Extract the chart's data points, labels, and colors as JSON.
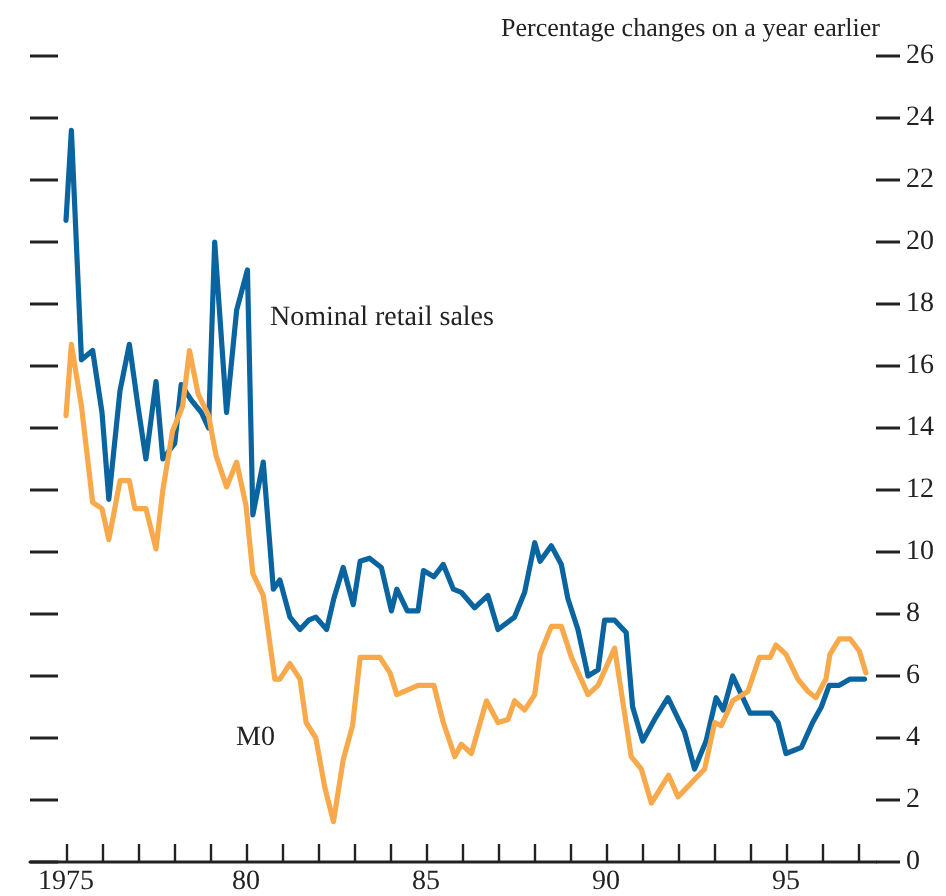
{
  "chart_data": {
    "type": "line",
    "title": "Percentage changes on a year earlier",
    "xlim": [
      1974,
      1997.5
    ],
    "xticks": [
      {
        "value": 1975,
        "label": "1975"
      },
      {
        "value": 1976,
        "label": null
      },
      {
        "value": 1977,
        "label": null
      },
      {
        "value": 1978,
        "label": null
      },
      {
        "value": 1979,
        "label": null
      },
      {
        "value": 1980,
        "label": "80"
      },
      {
        "value": 1981,
        "label": null
      },
      {
        "value": 1982,
        "label": null
      },
      {
        "value": 1983,
        "label": null
      },
      {
        "value": 1984,
        "label": null
      },
      {
        "value": 1985,
        "label": "85"
      },
      {
        "value": 1986,
        "label": null
      },
      {
        "value": 1987,
        "label": null
      },
      {
        "value": 1988,
        "label": null
      },
      {
        "value": 1989,
        "label": null
      },
      {
        "value": 1990,
        "label": "90"
      },
      {
        "value": 1991,
        "label": null
      },
      {
        "value": 1992,
        "label": null
      },
      {
        "value": 1993,
        "label": null
      },
      {
        "value": 1994,
        "label": null
      },
      {
        "value": 1995,
        "label": "95"
      },
      {
        "value": 1996,
        "label": null
      },
      {
        "value": 1997,
        "label": null
      }
    ],
    "ylim": [
      0,
      26
    ],
    "yticks": [
      0,
      2,
      4,
      6,
      8,
      10,
      12,
      14,
      16,
      18,
      20,
      22,
      24,
      26
    ],
    "grid": false,
    "legend": false,
    "marker": "none",
    "line_style": "solid",
    "series": [
      {
        "name": "Nominal retail sales",
        "color": "#0a64a0",
        "x": [
          1975.0,
          1975.15,
          1975.43,
          1975.74,
          1976.0,
          1976.19,
          1976.5,
          1976.76,
          1977.0,
          1977.22,
          1977.5,
          1977.69,
          1978.02,
          1978.2,
          1978.48,
          1978.76,
          1978.96,
          1979.13,
          1979.46,
          1979.74,
          1980.04,
          1980.19,
          1980.48,
          1980.76,
          1980.94,
          1981.22,
          1981.5,
          1981.74,
          1981.94,
          1982.24,
          1982.44,
          1982.7,
          1982.98,
          1983.17,
          1983.43,
          1983.76,
          1984.04,
          1984.19,
          1984.48,
          1984.78,
          1984.93,
          1985.22,
          1985.48,
          1985.76,
          1985.98,
          1986.35,
          1986.72,
          1987.0,
          1987.46,
          1987.74,
          1988.02,
          1988.17,
          1988.48,
          1988.76,
          1988.94,
          1989.22,
          1989.5,
          1989.78,
          1989.96,
          1990.24,
          1990.56,
          1990.74,
          1991.02,
          1991.35,
          1991.72,
          1992.18,
          1992.46,
          1992.78,
          1993.06,
          1993.26,
          1993.52,
          1993.76,
          1994.0,
          1994.59,
          1994.78,
          1995.0,
          1995.43,
          1995.74,
          1995.98,
          1996.2,
          1996.48,
          1996.78,
          1997.18
        ],
        "values": [
          20.7,
          23.6,
          16.2,
          16.5,
          14.5,
          11.7,
          15.2,
          16.7,
          14.7,
          13.0,
          15.5,
          13.0,
          13.5,
          15.4,
          14.9,
          14.5,
          14.0,
          20.0,
          14.5,
          17.8,
          19.1,
          11.2,
          12.9,
          8.8,
          9.1,
          7.9,
          7.5,
          7.8,
          7.9,
          7.5,
          8.5,
          9.5,
          8.3,
          9.7,
          9.8,
          9.5,
          8.1,
          8.8,
          8.1,
          8.1,
          9.4,
          9.2,
          9.6,
          8.8,
          8.7,
          8.2,
          8.6,
          7.5,
          7.9,
          8.7,
          10.3,
          9.7,
          10.2,
          9.6,
          8.5,
          7.5,
          6.0,
          6.2,
          7.8,
          7.8,
          7.4,
          5.0,
          3.9,
          4.6,
          5.3,
          4.2,
          3.0,
          3.9,
          5.3,
          4.9,
          6.0,
          5.4,
          4.8,
          4.8,
          4.5,
          3.5,
          3.7,
          4.5,
          5.0,
          5.7,
          5.7,
          5.9,
          5.9
        ]
      },
      {
        "name": "M0",
        "color": "#f7a94b",
        "x": [
          1975.0,
          1975.15,
          1975.43,
          1975.74,
          1976.0,
          1976.19,
          1976.5,
          1976.76,
          1976.91,
          1977.22,
          1977.5,
          1977.69,
          1977.96,
          1978.24,
          1978.43,
          1978.67,
          1978.96,
          1979.17,
          1979.46,
          1979.74,
          1980.0,
          1980.19,
          1980.48,
          1980.8,
          1980.94,
          1981.22,
          1981.5,
          1981.67,
          1981.94,
          1982.19,
          1982.43,
          1982.7,
          1982.96,
          1983.17,
          1983.72,
          1984.0,
          1984.19,
          1984.78,
          1985.22,
          1985.48,
          1985.8,
          1985.98,
          1986.26,
          1986.68,
          1987.0,
          1987.28,
          1987.46,
          1987.74,
          1988.02,
          1988.17,
          1988.48,
          1988.76,
          1989.04,
          1989.5,
          1989.78,
          1990.24,
          1990.7,
          1990.98,
          1991.26,
          1991.74,
          1992.0,
          1992.74,
          1993.02,
          1993.2,
          1993.52,
          1993.94,
          1994.26,
          1994.56,
          1994.72,
          1995.0,
          1995.33,
          1995.61,
          1995.83,
          1996.11,
          1996.22,
          1996.48,
          1996.78,
          1997.04,
          1997.22
        ],
        "values": [
          14.4,
          16.7,
          14.7,
          11.6,
          11.4,
          10.4,
          12.3,
          12.3,
          11.4,
          11.4,
          10.1,
          12.0,
          13.9,
          14.7,
          16.5,
          15.1,
          14.4,
          13.1,
          12.1,
          12.9,
          11.5,
          9.3,
          8.6,
          5.9,
          5.9,
          6.4,
          5.9,
          4.5,
          4.0,
          2.4,
          1.3,
          3.3,
          4.4,
          6.6,
          6.6,
          6.1,
          5.4,
          5.7,
          5.7,
          4.5,
          3.4,
          3.8,
          3.5,
          5.2,
          4.5,
          4.6,
          5.2,
          4.9,
          5.4,
          6.7,
          7.6,
          7.6,
          6.6,
          5.4,
          5.7,
          6.9,
          3.4,
          3.0,
          1.9,
          2.8,
          2.1,
          3.0,
          4.5,
          4.4,
          5.2,
          5.5,
          6.6,
          6.6,
          7.0,
          6.7,
          5.9,
          5.5,
          5.3,
          5.9,
          6.7,
          7.2,
          7.2,
          6.8,
          6.1
        ]
      }
    ]
  }
}
